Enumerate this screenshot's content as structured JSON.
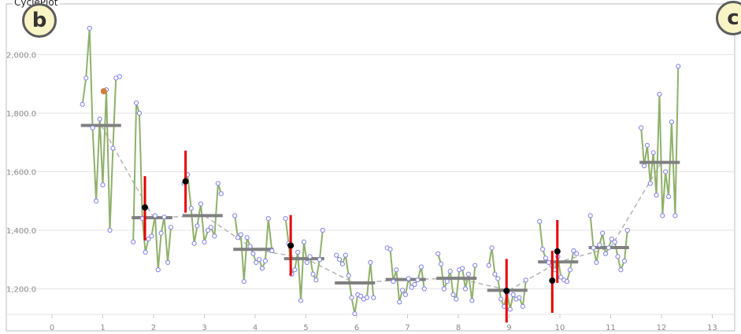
{
  "window": {
    "title": "CyclePlot"
  },
  "badges": {
    "left": "b",
    "right": "c"
  },
  "colors": {
    "series_line": "#8fb06b",
    "point_stroke": "#8080e8",
    "highlight_point": "#d27e3c",
    "mean_bar": "#808080",
    "trend_line": "#b4b4b4",
    "error_bar": "#e60000",
    "error_point": "#000000",
    "grid": "#e6e6e6"
  },
  "chart_data": {
    "type": "line",
    "title": "",
    "xlabel": "",
    "ylabel": "",
    "xlim": [
      -0.3,
      13.3
    ],
    "ylim": [
      1100,
      2200
    ],
    "x_ticks": [
      "0",
      "1",
      "2",
      "3",
      "4",
      "5",
      "6",
      "7",
      "8",
      "9",
      "10",
      "11",
      "12",
      "13"
    ],
    "y_ticks": [
      "1,200.0",
      "1,400.0",
      "1,600.0",
      "1,800.0",
      "2,000.0"
    ],
    "grid": true,
    "series": [
      {
        "x": [
          0.6,
          0.67,
          0.74,
          0.8,
          0.87,
          0.94,
          1.0,
          1.07,
          1.14,
          1.2,
          1.26,
          1.33
        ],
        "y": [
          1830,
          1920,
          2090,
          1750,
          1500,
          1780,
          1555,
          1880,
          1400,
          1680,
          1920,
          1925
        ],
        "highlight": {
          "x": 1.02,
          "y": 1875
        },
        "mean": 1758,
        "mean_x": 0.97
      },
      {
        "x": [
          1.6,
          1.66,
          1.72,
          1.78,
          1.84,
          1.9,
          1.96,
          2.03,
          2.09,
          2.15,
          2.21,
          2.28,
          2.34
        ],
        "y": [
          1360,
          1835,
          1800,
          1440,
          1325,
          1370,
          1380,
          1450,
          1265,
          1390,
          1445,
          1290,
          1410
        ],
        "mean": 1443,
        "mean_x": 2.0
      },
      {
        "x": [
          2.6,
          2.67,
          2.74,
          2.8,
          2.86,
          2.93,
          3.0,
          3.07,
          3.13,
          3.2,
          3.27,
          3.33
        ],
        "y": [
          1560,
          1590,
          1475,
          1355,
          1415,
          1490,
          1360,
          1400,
          1410,
          1380,
          1560,
          1525
        ],
        "mean": 1450,
        "mean_x": 3.0
      },
      {
        "x": [
          3.6,
          3.66,
          3.72,
          3.78,
          3.84,
          3.9,
          3.96,
          4.02,
          4.08,
          4.14,
          4.2,
          4.26,
          4.33
        ],
        "y": [
          1450,
          1375,
          1385,
          1225,
          1375,
          1345,
          1320,
          1290,
          1300,
          1270,
          1295,
          1440,
          1330
        ],
        "mean": 1335,
        "mean_x": 3.98
      },
      {
        "x": [
          4.6,
          4.66,
          4.72,
          4.78,
          4.84,
          4.9,
          4.96,
          5.02,
          5.08,
          5.14,
          5.2,
          5.27,
          5.33
        ],
        "y": [
          1440,
          1355,
          1250,
          1265,
          1325,
          1160,
          1360,
          1290,
          1310,
          1250,
          1230,
          1300,
          1400
        ],
        "mean": 1303,
        "mean_x": 5.0
      },
      {
        "x": [
          5.6,
          5.66,
          5.72,
          5.78,
          5.84,
          5.9,
          5.96,
          6.02,
          6.08,
          6.14,
          6.2,
          6.27,
          6.33
        ],
        "y": [
          1315,
          1300,
          1285,
          1315,
          1245,
          1170,
          1115,
          1180,
          1175,
          1165,
          1170,
          1290,
          1170
        ],
        "mean": 1220,
        "mean_x": 5.95
      },
      {
        "x": [
          6.6,
          6.66,
          6.72,
          6.78,
          6.84,
          6.9,
          6.96,
          7.02,
          7.08,
          7.14,
          7.2,
          7.27,
          7.33
        ],
        "y": [
          1340,
          1335,
          1225,
          1265,
          1155,
          1195,
          1180,
          1235,
          1205,
          1215,
          1230,
          1275,
          1200
        ],
        "mean": 1232,
        "mean_x": 7.0
      },
      {
        "x": [
          7.6,
          7.66,
          7.72,
          7.78,
          7.84,
          7.9,
          7.96,
          8.02,
          8.08,
          8.14,
          8.2,
          8.27,
          8.33
        ],
        "y": [
          1320,
          1285,
          1200,
          1225,
          1260,
          1180,
          1165,
          1265,
          1270,
          1200,
          1250,
          1160,
          1280
        ],
        "mean": 1236,
        "mean_x": 7.97
      },
      {
        "x": [
          8.6,
          8.66,
          8.72,
          8.78,
          8.84,
          8.9,
          8.96,
          9.02,
          9.08,
          9.14,
          9.2,
          9.27,
          9.33
        ],
        "y": [
          1280,
          1340,
          1250,
          1235,
          1165,
          1140,
          1185,
          1130,
          1180,
          1165,
          1170,
          1140,
          1230
        ],
        "mean": 1195,
        "mean_x": 9.0
      },
      {
        "x": [
          9.6,
          9.66,
          9.72,
          9.78,
          9.84,
          9.9,
          9.96,
          10.02,
          10.08,
          10.14,
          10.2,
          10.27,
          10.33
        ],
        "y": [
          1430,
          1335,
          1305,
          1290,
          1280,
          1265,
          1310,
          1240,
          1230,
          1225,
          1265,
          1330,
          1320
        ],
        "mean": 1292,
        "mean_x": 9.98
      },
      {
        "x": [
          10.6,
          10.66,
          10.72,
          10.78,
          10.84,
          10.9,
          10.96,
          11.02,
          11.08,
          11.14,
          11.2,
          11.27,
          11.33
        ],
        "y": [
          1450,
          1340,
          1290,
          1350,
          1390,
          1320,
          1340,
          1370,
          1360,
          1310,
          1265,
          1295,
          1400
        ],
        "mean": 1341,
        "mean_x": 11.0
      },
      {
        "x": [
          11.6,
          11.66,
          11.72,
          11.78,
          11.84,
          11.9,
          11.96,
          12.02,
          12.08,
          12.14,
          12.2,
          12.27,
          12.33
        ],
        "y": [
          1750,
          1620,
          1690,
          1560,
          1665,
          1520,
          1865,
          1450,
          1600,
          1515,
          1770,
          1450,
          1960
        ],
        "mean": 1632,
        "mean_x": 12.0
      }
    ],
    "error_markers": [
      {
        "x": 1.83,
        "y": 1478,
        "low": 1365,
        "high": 1585
      },
      {
        "x": 2.63,
        "y": 1567,
        "low": 1460,
        "high": 1672
      },
      {
        "x": 4.7,
        "y": 1348,
        "low": 1245,
        "high": 1452
      },
      {
        "x": 8.95,
        "y": 1193,
        "low": 1085,
        "high": 1302
      },
      {
        "x": 9.85,
        "y": 1228,
        "low": 1118,
        "high": 1330
      },
      {
        "x": 9.95,
        "y": 1328,
        "low": 1220,
        "high": 1435
      }
    ]
  }
}
